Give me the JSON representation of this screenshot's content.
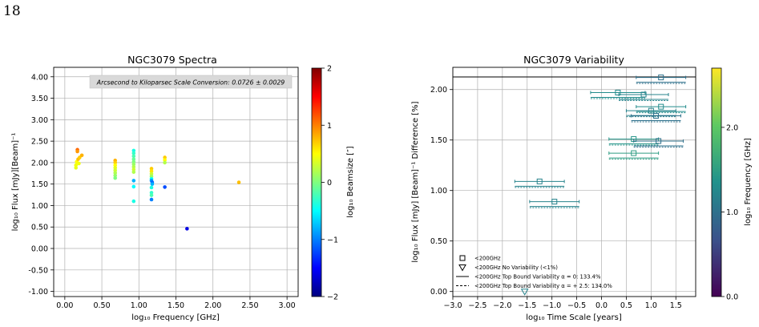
{
  "page_number": "18",
  "colors": {
    "jet": [
      "#00007f",
      "#0000ff",
      "#007fff",
      "#00ffff",
      "#7fff7f",
      "#ffff00",
      "#ff7f00",
      "#ff0000",
      "#7f0000"
    ],
    "viridis": [
      "#440154",
      "#3b528b",
      "#21918c",
      "#5ec962",
      "#fde725"
    ],
    "grid": "#b0b0b0"
  },
  "chart_data": [
    {
      "type": "scatter",
      "title": "NGC3079 Spectra",
      "annotation": "Arcsecond to Kiloparsec Scale Conversion: 0.0726 ± 0.0029",
      "xlabel": "log₁₀ Frequency [GHz]",
      "ylabel": "log₁₀ Flux [mJy][Beam]⁻¹",
      "xlim": [
        -0.15,
        3.15
      ],
      "ylim": [
        -1.12,
        4.22
      ],
      "xticks": [
        "0.00",
        "0.50",
        "1.00",
        "1.50",
        "2.00",
        "2.50",
        "3.00"
      ],
      "yticks": [
        "-1.00",
        "-0.50",
        "0.00",
        "0.50",
        "1.00",
        "1.50",
        "2.00",
        "2.50",
        "3.00",
        "3.50",
        "4.00"
      ],
      "grid": true,
      "colorbar": {
        "label": "log₁₀ Beamsize [″]",
        "range": [
          -2,
          2
        ],
        "ticks": [
          "−2",
          "−1",
          "0",
          "1",
          "2"
        ],
        "colormap": "jet"
      },
      "points": [
        {
          "x": 0.15,
          "y": 1.88,
          "c": 0.4
        },
        {
          "x": 0.15,
          "y": 1.94,
          "c": 0.45
        },
        {
          "x": 0.16,
          "y": 2.02,
          "c": 0.5
        },
        {
          "x": 0.17,
          "y": 2.3,
          "c": 1.1
        },
        {
          "x": 0.17,
          "y": 2.26,
          "c": 0.9
        },
        {
          "x": 0.18,
          "y": 2.08,
          "c": 0.75
        },
        {
          "x": 0.19,
          "y": 1.98,
          "c": 0.45
        },
        {
          "x": 0.2,
          "y": 2.12,
          "c": 0.7
        },
        {
          "x": 0.23,
          "y": 2.17,
          "c": 0.8
        },
        {
          "x": 0.68,
          "y": 2.05,
          "c": 0.8
        },
        {
          "x": 0.68,
          "y": 2.0,
          "c": 0.7
        },
        {
          "x": 0.68,
          "y": 1.94,
          "c": 0.5
        },
        {
          "x": 0.68,
          "y": 1.88,
          "c": 0.4
        },
        {
          "x": 0.68,
          "y": 1.82,
          "c": 0.3
        },
        {
          "x": 0.68,
          "y": 1.76,
          "c": 0.2
        },
        {
          "x": 0.68,
          "y": 1.7,
          "c": 0.1
        },
        {
          "x": 0.68,
          "y": 1.64,
          "c": 0.0
        },
        {
          "x": 0.93,
          "y": 2.28,
          "c": -0.4
        },
        {
          "x": 0.93,
          "y": 2.22,
          "c": -0.3
        },
        {
          "x": 0.93,
          "y": 2.15,
          "c": -0.2
        },
        {
          "x": 0.93,
          "y": 2.08,
          "c": -0.1
        },
        {
          "x": 0.93,
          "y": 2.02,
          "c": 0.0
        },
        {
          "x": 0.93,
          "y": 1.96,
          "c": 0.1
        },
        {
          "x": 0.93,
          "y": 1.9,
          "c": 0.2
        },
        {
          "x": 0.93,
          "y": 1.84,
          "c": 0.3
        },
        {
          "x": 0.93,
          "y": 1.78,
          "c": 0.2
        },
        {
          "x": 0.93,
          "y": 1.58,
          "c": -0.8
        },
        {
          "x": 0.93,
          "y": 1.44,
          "c": -0.5
        },
        {
          "x": 0.93,
          "y": 1.1,
          "c": -0.4
        },
        {
          "x": 1.17,
          "y": 1.86,
          "c": 0.7
        },
        {
          "x": 1.17,
          "y": 1.8,
          "c": 0.6
        },
        {
          "x": 1.17,
          "y": 1.74,
          "c": 0.3
        },
        {
          "x": 1.17,
          "y": 1.68,
          "c": 0.1
        },
        {
          "x": 1.17,
          "y": 1.62,
          "c": -0.5
        },
        {
          "x": 1.17,
          "y": 1.58,
          "c": -0.9
        },
        {
          "x": 1.18,
          "y": 1.54,
          "c": -1.1
        },
        {
          "x": 1.18,
          "y": 1.5,
          "c": -0.8
        },
        {
          "x": 1.17,
          "y": 1.42,
          "c": -0.4
        },
        {
          "x": 1.17,
          "y": 1.3,
          "c": -0.3
        },
        {
          "x": 1.17,
          "y": 1.24,
          "c": -0.2
        },
        {
          "x": 1.17,
          "y": 1.14,
          "c": -1.0
        },
        {
          "x": 1.35,
          "y": 2.12,
          "c": 0.7
        },
        {
          "x": 1.35,
          "y": 2.06,
          "c": 0.5
        },
        {
          "x": 1.35,
          "y": 2.0,
          "c": 0.2
        },
        {
          "x": 1.35,
          "y": 1.43,
          "c": -1.2
        },
        {
          "x": 1.65,
          "y": 0.46,
          "c": -1.6
        },
        {
          "x": 2.35,
          "y": 1.54,
          "c": 0.75
        }
      ]
    },
    {
      "type": "scatter",
      "title": "NGC3079 Variability",
      "xlabel": "log₁₀ Time Scale [years]",
      "ylabel": "log₁₀ Flux [mJy] [Beam]⁻¹ Difference [%]",
      "xlim": [
        -3.0,
        1.9
      ],
      "ylim": [
        -0.05,
        2.22
      ],
      "xticks": [
        "−3.0",
        "−2.5",
        "−2.0",
        "−1.5",
        "−1.0",
        "−0.5",
        "0.0",
        "0.5",
        "1.0",
        "1.5"
      ],
      "yticks": [
        "0.00",
        "0.50",
        "1.00",
        "1.50",
        "2.00"
      ],
      "grid": true,
      "hline": 2.125,
      "colorbar": {
        "label": "log₁₀ Frequency [GHz]",
        "range": [
          0,
          2.7
        ],
        "ticks": [
          "0.0",
          "1.0",
          "2.0"
        ],
        "colormap": "viridis"
      },
      "legend": {
        "location": "lower-left",
        "entries": [
          {
            "marker": "square",
            "label": "<200GHz"
          },
          {
            "marker": "triangle-down",
            "label": "<200GHz No Variability (<1%)"
          },
          {
            "marker": "solid-line",
            "label": "<200GHz Top Bound Variability α = 0: 133.4%"
          },
          {
            "marker": "dashed-line",
            "label": "<200GHz Top Bound Variability α = + 2.5: 134.0%"
          }
        ]
      },
      "points": [
        {
          "x": -1.25,
          "y": 1.09,
          "xerr": 0.5,
          "c": 1.2,
          "marker": "square"
        },
        {
          "x": -0.95,
          "y": 0.89,
          "xerr": 0.5,
          "c": 1.2,
          "marker": "square"
        },
        {
          "x": -1.55,
          "y": 0.0,
          "xerr": 0.0,
          "c": 1.2,
          "marker": "triangle-down"
        },
        {
          "x": 1.2,
          "y": 2.12,
          "xerr": 0.5,
          "c": 1.0,
          "marker": "square"
        },
        {
          "x": 0.33,
          "y": 1.97,
          "xerr": 0.55,
          "c": 1.3,
          "marker": "square"
        },
        {
          "x": 0.85,
          "y": 1.95,
          "xerr": 0.5,
          "c": 1.2,
          "marker": "square"
        },
        {
          "x": 1.2,
          "y": 1.83,
          "xerr": 0.5,
          "c": 1.3,
          "marker": "square"
        },
        {
          "x": 1.0,
          "y": 1.79,
          "xerr": 0.5,
          "c": 1.2,
          "marker": "square"
        },
        {
          "x": 1.1,
          "y": 1.74,
          "xerr": 0.5,
          "c": 1.0,
          "marker": "square"
        },
        {
          "x": 0.65,
          "y": 1.51,
          "xerr": 0.5,
          "c": 1.4,
          "marker": "square"
        },
        {
          "x": 1.15,
          "y": 1.49,
          "xerr": 0.5,
          "c": 1.0,
          "marker": "square"
        },
        {
          "x": 0.65,
          "y": 1.37,
          "xerr": 0.5,
          "c": 1.5,
          "marker": "square"
        }
      ]
    }
  ]
}
